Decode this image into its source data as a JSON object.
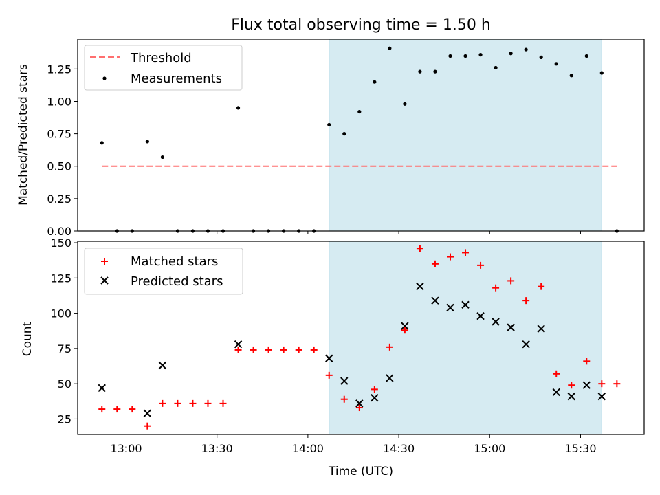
{
  "chart_data": [
    {
      "type": "scatter",
      "title": "Flux total observing time = 1.50 h",
      "xlabel": "",
      "ylabel": "Matched/Predicted stars",
      "xlim": [
        "12:44",
        "15:51"
      ],
      "ylim": [
        0,
        1.48
      ],
      "yticks": [
        "0.00",
        "0.25",
        "0.50",
        "0.75",
        "1.00",
        "1.25"
      ],
      "shaded_region": {
        "start": "14:07",
        "end": "15:37",
        "color": "#add8e6"
      },
      "threshold": {
        "name": "Threshold",
        "value": 0.5,
        "start": "12:52",
        "end": "15:42",
        "color": "#ff6f6f"
      },
      "series": [
        {
          "name": "Measurements",
          "marker": "dot",
          "color": "#000000",
          "x": [
            "12:52",
            "12:57",
            "13:02",
            "13:07",
            "13:12",
            "13:17",
            "13:22",
            "13:27",
            "13:32",
            "13:37",
            "13:42",
            "13:47",
            "13:52",
            "13:57",
            "14:02",
            "14:07",
            "14:12",
            "14:17",
            "14:22",
            "14:27",
            "14:32",
            "14:37",
            "14:42",
            "14:47",
            "14:52",
            "14:57",
            "15:02",
            "15:07",
            "15:12",
            "15:17",
            "15:22",
            "15:27",
            "15:32",
            "15:37",
            "15:42"
          ],
          "y": [
            0.68,
            0.0,
            0.0,
            0.69,
            0.57,
            0.0,
            0.0,
            0.0,
            0.0,
            0.95,
            0.0,
            0.0,
            0.0,
            0.0,
            0.0,
            0.82,
            0.75,
            0.92,
            1.15,
            1.41,
            0.98,
            1.23,
            1.23,
            1.35,
            1.35,
            1.36,
            1.26,
            1.37,
            1.4,
            1.34,
            1.29,
            1.2,
            1.35,
            1.22,
            0.0
          ]
        }
      ]
    },
    {
      "type": "scatter",
      "title": "",
      "xlabel": "Time (UTC)",
      "ylabel": "Count",
      "xlim": [
        "12:44",
        "15:51"
      ],
      "ylim": [
        14,
        151
      ],
      "yticks": [
        "25",
        "50",
        "75",
        "100",
        "125",
        "150"
      ],
      "xticks": [
        "13:00",
        "13:30",
        "14:00",
        "14:30",
        "15:00",
        "15:30"
      ],
      "shaded_region": {
        "start": "14:07",
        "end": "15:37",
        "color": "#add8e6"
      },
      "series": [
        {
          "name": "Matched stars",
          "marker": "plus",
          "color": "#ff0000",
          "x": [
            "12:52",
            "12:57",
            "13:02",
            "13:07",
            "13:12",
            "13:17",
            "13:22",
            "13:27",
            "13:32",
            "13:37",
            "13:42",
            "13:47",
            "13:52",
            "13:57",
            "14:02",
            "14:07",
            "14:12",
            "14:17",
            "14:22",
            "14:27",
            "14:32",
            "14:37",
            "14:42",
            "14:47",
            "14:52",
            "14:57",
            "15:02",
            "15:07",
            "15:12",
            "15:17",
            "15:22",
            "15:27",
            "15:32",
            "15:37",
            "15:42"
          ],
          "y": [
            32,
            32,
            32,
            20,
            36,
            36,
            36,
            36,
            36,
            74,
            74,
            74,
            74,
            74,
            74,
            56,
            39,
            33,
            46,
            76,
            88,
            146,
            135,
            140,
            143,
            134,
            118,
            123,
            109,
            119,
            57,
            49,
            66,
            50,
            50
          ]
        },
        {
          "name": "Predicted stars",
          "marker": "x",
          "color": "#000000",
          "x": [
            "12:52",
            "13:07",
            "13:12",
            "13:37",
            "14:07",
            "14:12",
            "14:17",
            "14:22",
            "14:27",
            "14:32",
            "14:37",
            "14:42",
            "14:47",
            "14:52",
            "14:57",
            "15:02",
            "15:07",
            "15:12",
            "15:17",
            "15:22",
            "15:27",
            "15:32",
            "15:37"
          ],
          "y": [
            47,
            29,
            63,
            78,
            68,
            52,
            36,
            40,
            54,
            91,
            119,
            109,
            104,
            106,
            98,
            94,
            90,
            78,
            89,
            44,
            41,
            49,
            41
          ]
        }
      ]
    }
  ]
}
